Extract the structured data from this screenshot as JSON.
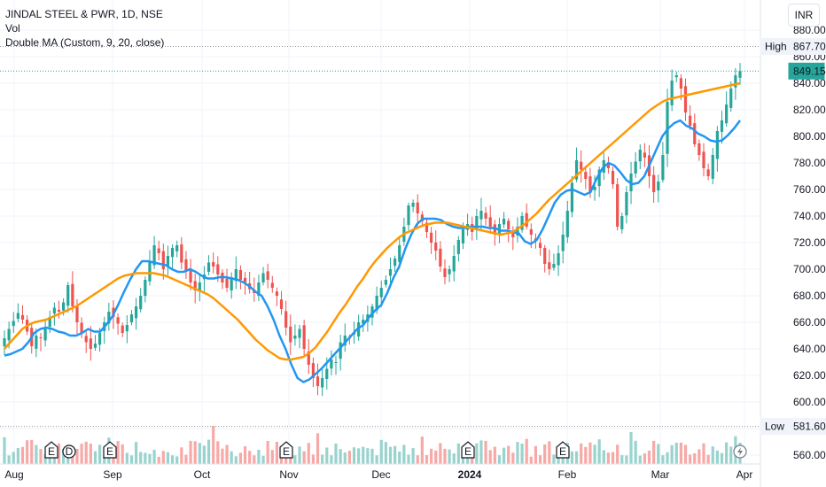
{
  "legend": {
    "symbol": "JINDAL STEEL & PWR, 1D, NSE",
    "volume": "Vol",
    "indicator": "Double MA (Custom, 9, 20, close)"
  },
  "currency": "INR",
  "markers": {
    "high_label": "High",
    "high_value": "867.70",
    "low_label": "Low",
    "low_value": "581.60",
    "last_value": "849.15"
  },
  "colors": {
    "up": "#26a69a",
    "down": "#ef5350",
    "vol_up": "#99d3ce",
    "vol_down": "#f6a9a7",
    "ma_fast": "#2196f3",
    "ma_slow": "#ff9800",
    "price_tag": "#26a69a"
  },
  "events": {
    "earnings_label": "E",
    "dividend_label": "D",
    "flash_icon": "lightning-icon"
  },
  "chart_data": {
    "type": "candlestick",
    "title": "JINDAL STEEL & PWR, 1D, NSE",
    "y_ticks": [
      560,
      580,
      600,
      620,
      640,
      660,
      680,
      700,
      720,
      740,
      760,
      780,
      800,
      820,
      840,
      860,
      880
    ],
    "ylim": [
      553,
      895
    ],
    "x_labels": [
      {
        "label": "Aug",
        "date": "2023-08-01",
        "bold": false
      },
      {
        "label": "Sep",
        "date": "2023-09-01",
        "bold": false
      },
      {
        "label": "Oct",
        "date": "2023-10-02",
        "bold": false
      },
      {
        "label": "Nov",
        "date": "2023-11-01",
        "bold": false
      },
      {
        "label": "Dec",
        "date": "2023-12-01",
        "bold": false
      },
      {
        "label": "2024",
        "date": "2024-01-01",
        "bold": true
      },
      {
        "label": "Feb",
        "date": "2024-02-01",
        "bold": false
      },
      {
        "label": "Mar",
        "date": "2024-03-01",
        "bold": false
      },
      {
        "label": "Apr",
        "date": "2024-04-01",
        "bold": false
      }
    ],
    "closes": [
      648,
      655,
      661,
      667,
      662,
      653,
      642,
      650,
      648,
      655,
      664,
      671,
      668,
      675,
      688,
      672,
      660,
      652,
      645,
      640,
      644,
      652,
      660,
      668,
      664,
      659,
      652,
      658,
      666,
      672,
      680,
      692,
      706,
      718,
      712,
      700,
      710,
      716,
      718,
      705,
      698,
      690,
      684,
      690,
      696,
      705,
      702,
      696,
      690,
      686,
      694,
      700,
      692,
      690,
      685,
      682,
      690,
      697,
      692,
      686,
      680,
      670,
      656,
      645,
      650,
      655,
      640,
      628,
      618,
      612,
      618,
      625,
      632,
      630,
      645,
      650,
      648,
      652,
      660,
      662,
      666,
      672,
      680,
      686,
      692,
      700,
      708,
      718,
      732,
      748,
      750,
      742,
      736,
      728,
      720,
      714,
      702,
      694,
      700,
      710,
      722,
      730,
      734,
      728,
      740,
      744,
      738,
      732,
      726,
      734,
      738,
      730,
      724,
      732,
      740,
      732,
      726,
      722,
      716,
      704,
      700,
      704,
      712,
      726,
      744,
      765,
      782,
      775,
      768,
      758,
      762,
      775,
      782,
      776,
      764,
      732,
      740,
      758,
      772,
      781,
      790,
      784,
      770,
      758,
      766,
      786,
      826,
      842,
      846,
      836,
      818,
      808,
      794,
      786,
      776,
      770,
      786,
      804,
      812,
      824,
      836,
      846,
      849.15
    ],
    "series": [
      {
        "name": "",
        "kind": "ma_fast",
        "values": [
          635,
          636,
          638,
          640,
          645,
          652,
          655,
          656,
          655,
          653,
          652,
          650,
          650,
          652,
          655,
          653,
          653,
          658,
          664,
          673,
          683,
          692,
          700,
          706,
          706,
          705,
          704,
          703,
          700,
          698,
          698,
          700,
          698,
          695,
          693,
          693,
          694,
          694,
          693,
          692,
          690,
          687,
          683,
          680,
          672,
          662,
          650,
          640,
          628,
          618,
          615,
          617,
          621,
          625,
          630,
          635,
          640,
          645,
          650,
          655,
          658,
          664,
          669,
          673,
          682,
          693,
          702,
          715,
          726,
          734,
          738,
          738,
          738,
          737,
          734,
          732,
          731,
          731,
          732,
          732,
          732,
          731,
          731,
          729,
          729,
          728,
          727,
          721,
          719,
          722,
          730,
          740,
          750,
          756,
          759,
          760,
          758,
          756,
          758,
          768,
          776,
          780,
          778,
          773,
          767,
          764,
          765,
          770,
          780,
          790,
          800,
          806,
          810,
          812,
          808,
          806,
          802,
          800,
          797,
          796,
          797,
          801,
          806,
          812
        ]
      },
      {
        "name": "",
        "kind": "ma_slow",
        "values": [
          640,
          645,
          650,
          655,
          658,
          660,
          661,
          662,
          664,
          666,
          668,
          670,
          672,
          675,
          678,
          681,
          684,
          687,
          690,
          693,
          695,
          696,
          697,
          697,
          697,
          697,
          696,
          695,
          693,
          691,
          689,
          687,
          685,
          683,
          681,
          678,
          674,
          670,
          666,
          662,
          657,
          652,
          647,
          643,
          639,
          636,
          633,
          632,
          632,
          633,
          634,
          637,
          641,
          647,
          653,
          660,
          667,
          673,
          680,
          687,
          693,
          700,
          706,
          711,
          716,
          720,
          724,
          727,
          729,
          731,
          733,
          734,
          735,
          735,
          735,
          734,
          733,
          732,
          731,
          730,
          729,
          728,
          727,
          726,
          727,
          728,
          731,
          734,
          738,
          742,
          747,
          752,
          756,
          760,
          764,
          768,
          772,
          776,
          780,
          784,
          788,
          792,
          796,
          800,
          804,
          808,
          812,
          816,
          820,
          823,
          826,
          828,
          829,
          830,
          831,
          832,
          833,
          834,
          835,
          836,
          837,
          838,
          839,
          840
        ]
      }
    ]
  }
}
